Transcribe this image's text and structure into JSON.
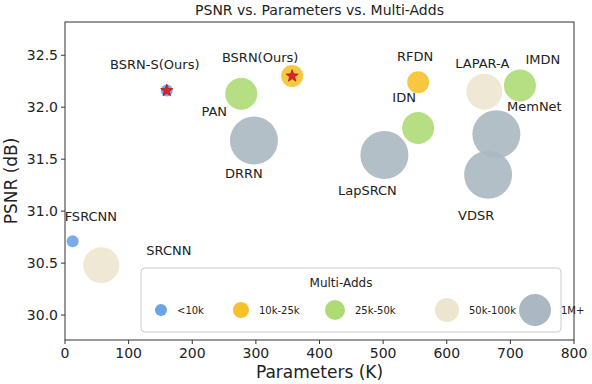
{
  "chart_data": {
    "type": "scatter",
    "title": "PSNR vs. Parameters vs. Multi-Adds",
    "x_label": "Parameters (K)",
    "y_label": "PSNR (dB)",
    "legend_title": "Multi-Adds",
    "xlim": [
      0,
      800
    ],
    "xticks": [
      0,
      100,
      200,
      300,
      400,
      500,
      600,
      700,
      800
    ],
    "ylim": [
      29.76,
      32.82
    ],
    "yticks": [
      {
        "value": 30,
        "label": "30.0"
      },
      {
        "value": 30.5,
        "label": "30.5"
      },
      {
        "value": 31,
        "label": "31.0"
      },
      {
        "value": 31.5,
        "label": "31.5"
      },
      {
        "value": 32,
        "label": "32.0"
      },
      {
        "value": 32.5,
        "label": "32.5"
      }
    ],
    "grid": false,
    "legend": "lower right",
    "series": [
      {
        "name": "<10k",
        "color": "#6ba3e8",
        "x": [
          12,
          160
        ],
        "values": [
          30.71,
          32.16
        ],
        "labels": [
          "FSRCNN",
          "BSRN-S(Ours)"
        ],
        "marker": [
          "circle",
          "star"
        ]
      },
      {
        "name": "10k-25k",
        "color": "#f7c12e",
        "x": [
          357,
          555
        ],
        "values": [
          32.3,
          32.24
        ],
        "labels": [
          "BSRN(Ours)",
          "RFDN"
        ],
        "marker": [
          "star",
          "circle"
        ]
      },
      {
        "name": "25k-50k",
        "color": "#addb74",
        "x": [
          277,
          555,
          715
        ],
        "values": [
          32.13,
          31.8,
          32.21
        ],
        "labels": [
          "PAN",
          "IDN",
          "IMDN"
        ]
      },
      {
        "name": "50k-100k",
        "color": "#ede6cf",
        "x": [
          57,
          659
        ],
        "values": [
          30.48,
          32.15
        ],
        "labels": [
          "SRCNN",
          "LAPAR-A"
        ]
      },
      {
        "name": "1M+",
        "color": "#abb8c1",
        "x": [
          297,
          502,
          665,
          678
        ],
        "values": [
          31.68,
          31.54,
          31.35,
          31.74
        ],
        "labels": [
          "DRRN",
          "LapSRCN",
          "VDSR",
          "MemNet"
        ]
      }
    ]
  }
}
